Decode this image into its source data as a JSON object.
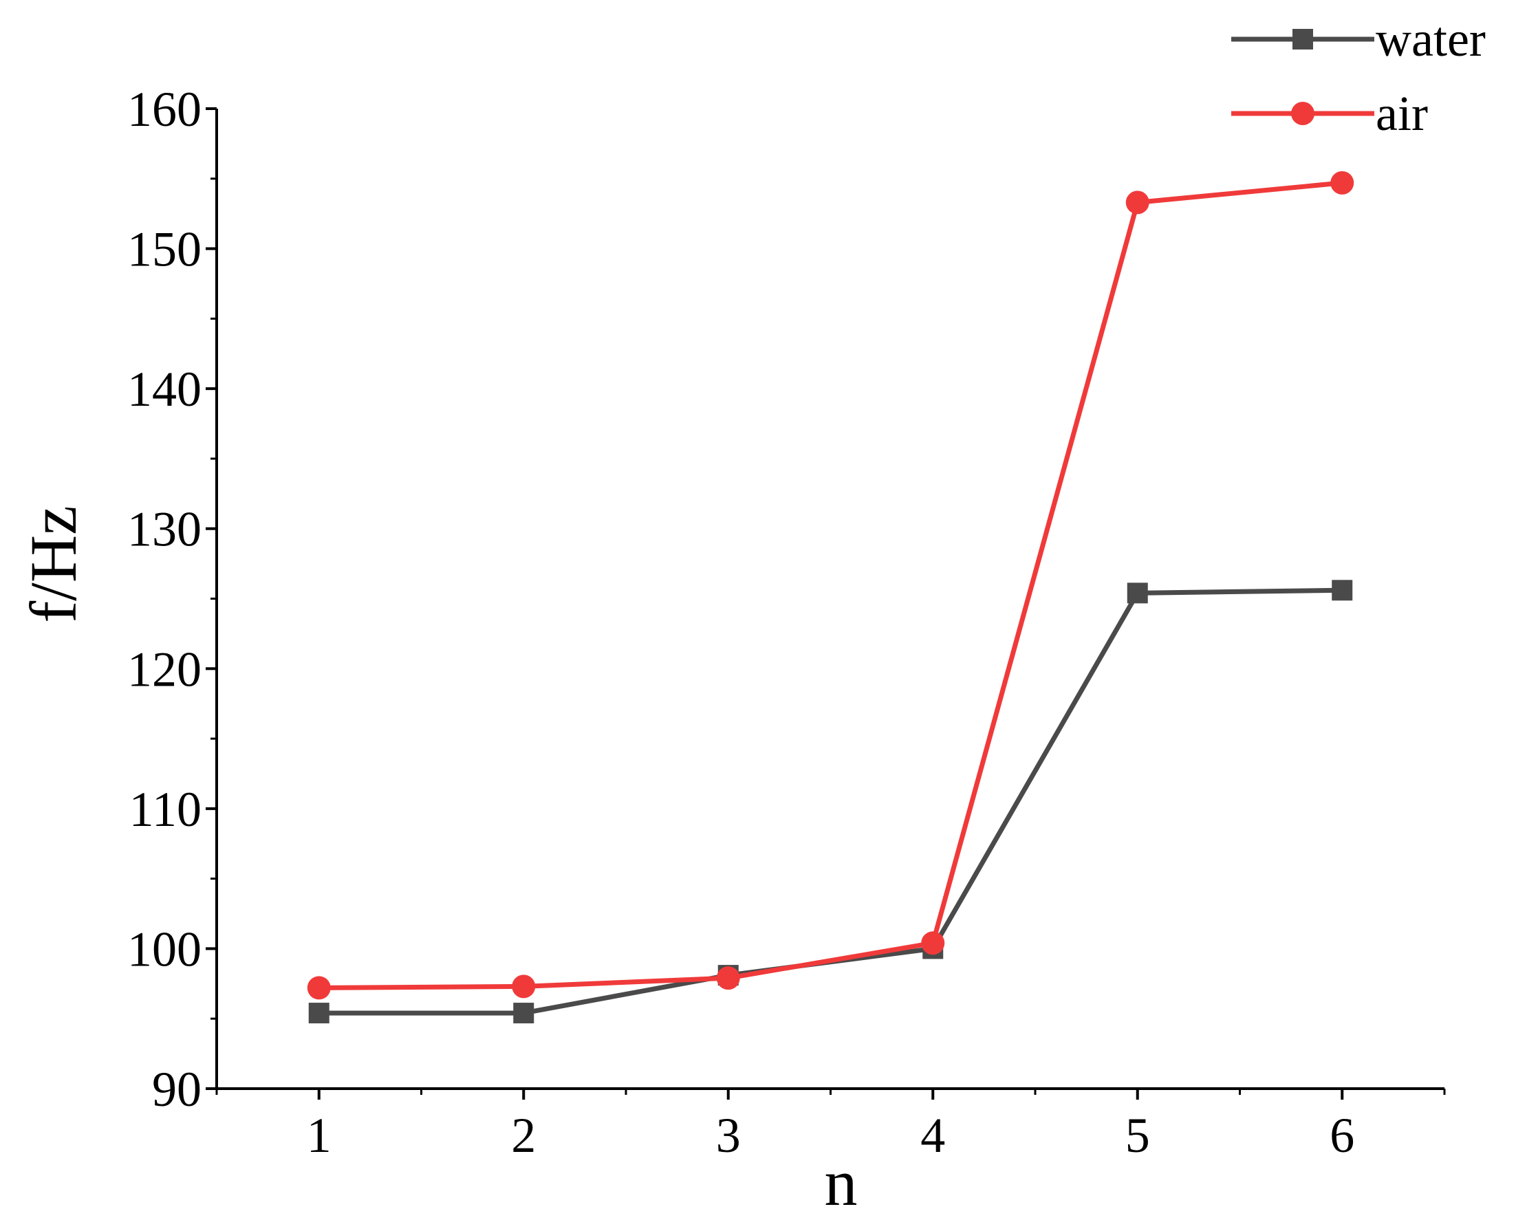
{
  "chart_data": {
    "type": "line",
    "xlabel": "n",
    "ylabel": "f/Hz",
    "x": [
      1,
      2,
      3,
      4,
      5,
      6
    ],
    "xlim": [
      0.5,
      6.5
    ],
    "ylim": [
      90,
      160
    ],
    "xticks": [
      1,
      2,
      3,
      4,
      5,
      6
    ],
    "yticks": [
      90,
      100,
      110,
      120,
      130,
      140,
      150,
      160
    ],
    "grid": false,
    "legend_position": "top-right",
    "series": [
      {
        "name": "water",
        "color": "#4a4a4a",
        "marker": "square",
        "values": [
          95.4,
          95.4,
          98.1,
          100.0,
          125.4,
          125.6
        ]
      },
      {
        "name": "air",
        "color": "#f03a3a",
        "marker": "circle",
        "values": [
          97.2,
          97.3,
          97.9,
          100.4,
          153.3,
          154.7
        ]
      }
    ]
  }
}
